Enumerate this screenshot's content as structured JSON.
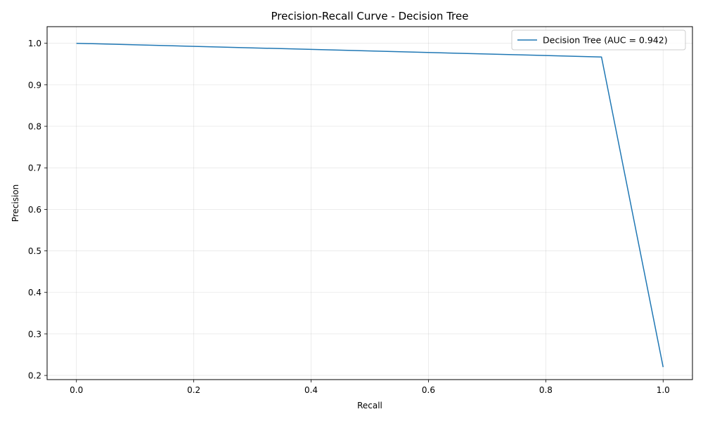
{
  "chart_data": {
    "type": "line",
    "title": "Precision-Recall Curve - Decision Tree",
    "xlabel": "Recall",
    "ylabel": "Precision",
    "xlim": [
      -0.05,
      1.05
    ],
    "ylim": [
      0.19,
      1.04
    ],
    "xticks": [
      0.0,
      0.2,
      0.4,
      0.6,
      0.8,
      1.0
    ],
    "xtick_labels": [
      "0.0",
      "0.2",
      "0.4",
      "0.6",
      "0.8",
      "1.0"
    ],
    "yticks": [
      0.2,
      0.3,
      0.4,
      0.5,
      0.6,
      0.7,
      0.8,
      0.9,
      1.0
    ],
    "ytick_labels": [
      "0.2",
      "0.3",
      "0.4",
      "0.5",
      "0.6",
      "0.7",
      "0.8",
      "0.9",
      "1.0"
    ],
    "grid": true,
    "legend_position": "top-right",
    "series": [
      {
        "name": "Decision Tree (AUC = 0.942)",
        "color": "#1f77b4",
        "x": [
          0.0,
          0.895,
          1.0
        ],
        "y": [
          1.0,
          0.967,
          0.22
        ]
      }
    ]
  }
}
